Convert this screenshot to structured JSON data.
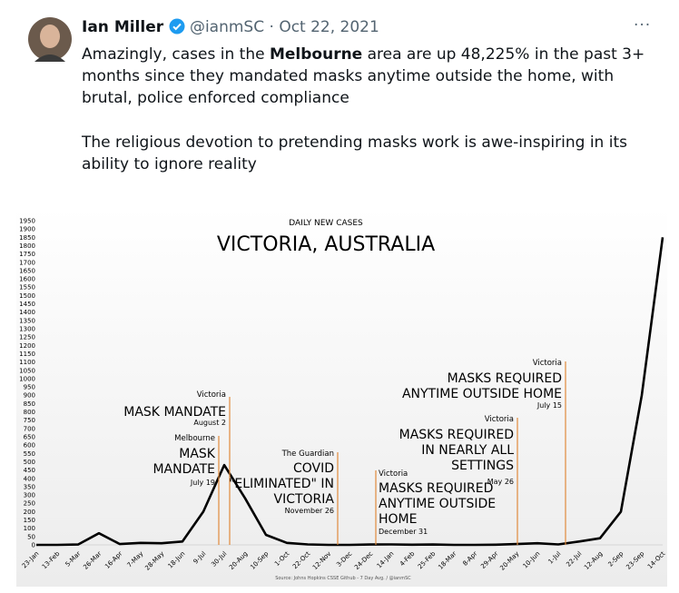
{
  "tweet": {
    "name": "Ian Miller",
    "handle": "@ianmSC",
    "separator": "·",
    "date": "Oct 22, 2021",
    "more": "···",
    "text": [
      [
        "Amazingly, cases in the ",
        "Melbourne",
        " area are up 48,225% in the past 3+ months since they mandated masks anytime outside the home, with brutal, police enforced compliance"
      ],
      [
        "The religious devotion to pretending masks work is awe-inspiring in its ability to ignore reality"
      ]
    ]
  },
  "chart_data": {
    "type": "line",
    "subtitle": "DAILY NEW CASES",
    "title": "VICTORIA, AUSTRALIA",
    "source": "Source: Johns Hopkins CSSE Github - 7 Day Avg. / @ianmSC",
    "categories": [
      "23-Jan",
      "13-Feb",
      "5-Mar",
      "26-Mar",
      "16-Apr",
      "7-May",
      "28-May",
      "18-Jun",
      "9-Jul",
      "30-Jul",
      "20-Aug",
      "10-Sep",
      "1-Oct",
      "22-Oct",
      "12-Nov",
      "3-Dec",
      "24-Dec",
      "14-Jan",
      "4-Feb",
      "25-Feb",
      "18-Mar",
      "8-Apr",
      "29-Apr",
      "20-May",
      "10-Jun",
      "1-Jul",
      "22-Jul",
      "12-Aug",
      "2-Sep",
      "23-Sep",
      "14-Oct"
    ],
    "series": [
      {
        "name": "Daily new cases",
        "color": "#000000",
        "values": [
          0,
          0,
          2,
          70,
          5,
          12,
          10,
          20,
          200,
          480,
          280,
          60,
          12,
          3,
          0,
          0,
          2,
          3,
          1,
          2,
          0,
          0,
          1,
          5,
          10,
          3,
          20,
          40,
          200,
          900,
          1850
        ]
      }
    ],
    "ylim": [
      0,
      1950
    ],
    "yticks": [
      0,
      50,
      100,
      150,
      200,
      250,
      300,
      350,
      400,
      450,
      500,
      550,
      600,
      650,
      700,
      750,
      800,
      850,
      900,
      950,
      1000,
      1050,
      1100,
      1150,
      1200,
      1250,
      1300,
      1350,
      1400,
      1450,
      1500,
      1550,
      1600,
      1650,
      1700,
      1750,
      1800,
      1850,
      1900,
      1950
    ],
    "annotations": [
      {
        "source": "Victoria",
        "label": [
          "MASK MANDATE"
        ],
        "date": "August 2"
      },
      {
        "source": "Melbourne",
        "label": [
          "MASK",
          "MANDATE"
        ],
        "date": "July 19"
      },
      {
        "source": "The Guardian",
        "label": [
          "COVID",
          "\"ELIMINATED\" IN",
          "VICTORIA"
        ],
        "date": "November 26"
      },
      {
        "source": "Victoria",
        "label": [
          "MASKS REQUIRED",
          "ANYTIME OUTSIDE",
          "HOME"
        ],
        "date": "December 31"
      },
      {
        "source": "Victoria",
        "label": [
          "MASKS REQUIRED",
          "IN NEARLY ALL",
          "SETTINGS"
        ],
        "date": "May 26"
      },
      {
        "source": "Victoria",
        "label": [
          "MASKS REQUIRED",
          "ANYTIME OUTSIDE HOME"
        ],
        "date": "July 15"
      }
    ]
  }
}
